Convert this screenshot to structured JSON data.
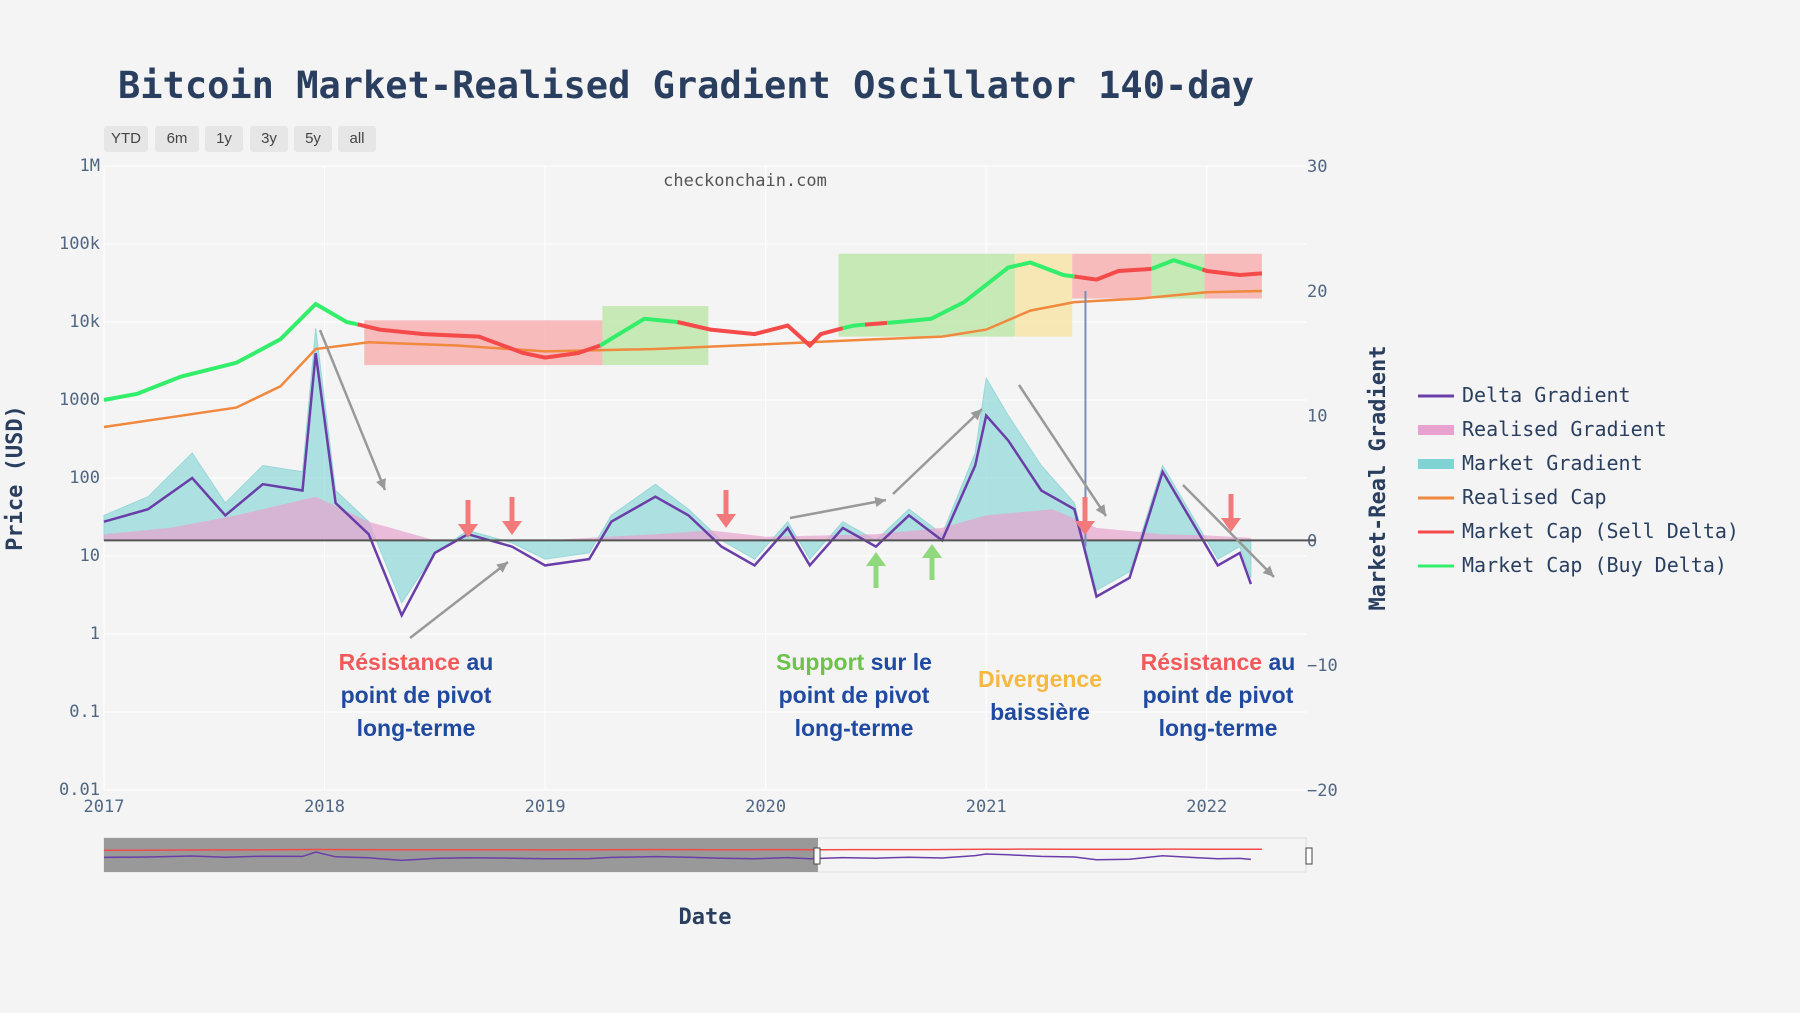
{
  "title": "Bitcoin Market-Realised Gradient Oscillator 140-day",
  "watermark": "checkonchain.com",
  "range_buttons": [
    "YTD",
    "6m",
    "1y",
    "3y",
    "5y",
    "all"
  ],
  "annotations": [
    {
      "part1": "Résistance",
      "part1_color": "red",
      "part2": " au",
      "line2": "point de pivot",
      "line3": "long-terme"
    },
    {
      "part1": "Support",
      "part1_color": "green",
      "part2": " sur le",
      "line2": "point de pivot",
      "line3": "long-terme"
    },
    {
      "part1": "Divergence",
      "part1_color": "yellow",
      "part2": "",
      "line2": "baissière",
      "line3": ""
    },
    {
      "part1": "Résistance",
      "part1_color": "red",
      "part2": " au",
      "line2": "point de pivot",
      "line3": "long-terme"
    }
  ],
  "colors": {
    "delta": "#6a3ea8",
    "realised_gradient": "#e7a2cf",
    "market_gradient": "#7fd3d3",
    "realised_cap": "#f0883e",
    "sell_delta": "#f44a4a",
    "buy_delta": "#33ee6a",
    "zone_red": "#f8a8a8",
    "zone_green": "#b8e6a0",
    "zone_yellow": "#f7e3a0",
    "arrow_red": "#f27a7a",
    "arrow_green": "#8fd87c",
    "arrow_gray": "#999999"
  },
  "chart_data": {
    "type": "line",
    "title": "Bitcoin Market-Realised Gradient Oscillator 140-day",
    "xlabel": "Date",
    "ylabel": "Price (USD)",
    "y2label": "Market-Real Gradient",
    "x_ticks": [
      "2017",
      "2018",
      "2019",
      "2020",
      "2021",
      "2022"
    ],
    "x_range": [
      2017.0,
      2022.45
    ],
    "y_left": {
      "scale": "log",
      "range": [
        0.01,
        1000000
      ],
      "ticks": [
        "1M",
        "100k",
        "10k",
        "1000",
        "100",
        "10",
        "1",
        "0.1",
        "0.01"
      ]
    },
    "y_right": {
      "range": [
        -20,
        30
      ],
      "ticks": [
        "30",
        "20",
        "10",
        "0",
        "−10",
        "−20"
      ]
    },
    "legend": [
      "Delta Gradient",
      "Realised Gradient",
      "Market Gradient",
      "Realised Cap",
      "Market Cap (Sell Delta)",
      "Market Cap (Buy Delta)"
    ],
    "market_cap": {
      "x": [
        2017.0,
        2017.15,
        2017.35,
        2017.6,
        2017.8,
        2017.96,
        2018.1,
        2018.25,
        2018.45,
        2018.7,
        2018.9,
        2019.0,
        2019.15,
        2019.25,
        2019.45,
        2019.6,
        2019.75,
        2019.95,
        2020.1,
        2020.2,
        2020.25,
        2020.4,
        2020.6,
        2020.75,
        2020.9,
        2021.0,
        2021.1,
        2021.2,
        2021.35,
        2021.5,
        2021.6,
        2021.75,
        2021.85,
        2022.0,
        2022.15,
        2022.25
      ],
      "y": [
        1000,
        1200,
        2000,
        3000,
        6000,
        17000,
        10000,
        8000,
        7000,
        6500,
        4000,
        3500,
        4000,
        5000,
        11000,
        10000,
        8000,
        7000,
        9000,
        5000,
        7000,
        9000,
        10000,
        11000,
        18000,
        30000,
        50000,
        58000,
        40000,
        35000,
        45000,
        48000,
        62000,
        45000,
        40000,
        42000
      ],
      "segments": [
        {
          "from": 2017.0,
          "to": 2018.15,
          "mode": "buy"
        },
        {
          "from": 2018.15,
          "to": 2019.25,
          "mode": "sell"
        },
        {
          "from": 2019.25,
          "to": 2019.6,
          "mode": "buy"
        },
        {
          "from": 2019.6,
          "to": 2020.35,
          "mode": "sell"
        },
        {
          "from": 2020.35,
          "to": 2020.45,
          "mode": "buy"
        },
        {
          "from": 2020.45,
          "to": 2020.55,
          "mode": "sell"
        },
        {
          "from": 2020.55,
          "to": 2021.4,
          "mode": "buy"
        },
        {
          "from": 2021.4,
          "to": 2021.75,
          "mode": "sell"
        },
        {
          "from": 2021.75,
          "to": 2021.98,
          "mode": "buy"
        },
        {
          "from": 2021.98,
          "to": 2022.25,
          "mode": "sell"
        }
      ]
    },
    "realised_cap": {
      "x": [
        2017.0,
        2017.3,
        2017.6,
        2017.8,
        2017.96,
        2018.2,
        2018.6,
        2019.0,
        2019.5,
        2020.0,
        2020.5,
        2020.8,
        2021.0,
        2021.2,
        2021.4,
        2021.7,
        2022.0,
        2022.25
      ],
      "y": [
        450,
        600,
        800,
        1500,
        4500,
        5500,
        5000,
        4200,
        4500,
        5200,
        6000,
        6500,
        8000,
        14000,
        18000,
        20000,
        24000,
        25000
      ]
    },
    "delta_gradient": {
      "x": [
        2017.0,
        2017.2,
        2017.4,
        2017.55,
        2017.72,
        2017.9,
        2017.96,
        2018.05,
        2018.2,
        2018.35,
        2018.5,
        2018.65,
        2018.85,
        2019.0,
        2019.2,
        2019.3,
        2019.5,
        2019.65,
        2019.8,
        2019.95,
        2020.1,
        2020.2,
        2020.35,
        2020.5,
        2020.65,
        2020.8,
        2020.95,
        2021.0,
        2021.1,
        2021.25,
        2021.4,
        2021.5,
        2021.65,
        2021.8,
        2021.95,
        2022.05,
        2022.15,
        2022.2
      ],
      "y": [
        1.5,
        2.5,
        5.0,
        2.0,
        4.5,
        4.0,
        15.0,
        3.0,
        0.5,
        -6.0,
        -1.0,
        0.5,
        -0.5,
        -2.0,
        -1.5,
        1.5,
        3.5,
        2.0,
        -0.5,
        -2.0,
        1.0,
        -2.0,
        1.0,
        -0.5,
        2.0,
        0.0,
        6.0,
        10.0,
        8.0,
        4.0,
        2.5,
        -4.5,
        -3.0,
        5.5,
        1.0,
        -2.0,
        -1.0,
        -3.5
      ]
    },
    "market_gradient": {
      "x": [
        2017.0,
        2017.2,
        2017.4,
        2017.55,
        2017.72,
        2017.9,
        2017.96,
        2018.05,
        2018.2,
        2018.35,
        2018.5,
        2018.65,
        2018.85,
        2019.0,
        2019.2,
        2019.3,
        2019.5,
        2019.65,
        2019.8,
        2019.95,
        2020.1,
        2020.2,
        2020.35,
        2020.5,
        2020.65,
        2020.8,
        2020.95,
        2021.0,
        2021.1,
        2021.25,
        2021.4,
        2021.5,
        2021.65,
        2021.8,
        2021.95,
        2022.05,
        2022.15,
        2022.2
      ],
      "y": [
        2.0,
        3.5,
        7.0,
        3.0,
        6.0,
        5.5,
        17.0,
        4.0,
        1.5,
        -5.0,
        -1.0,
        0.8,
        -0.2,
        -1.5,
        -1.0,
        2.0,
        4.5,
        2.5,
        0.0,
        -1.5,
        1.5,
        -1.5,
        1.5,
        0.0,
        2.5,
        0.5,
        7.0,
        13.0,
        10.0,
        6.0,
        3.0,
        -4.0,
        -2.5,
        6.0,
        1.5,
        -1.5,
        -0.5,
        -3.0
      ]
    },
    "realised_gradient": {
      "x": [
        2017.0,
        2017.3,
        2017.6,
        2017.96,
        2018.2,
        2018.5,
        2019.0,
        2019.5,
        2019.75,
        2020.0,
        2020.5,
        2020.8,
        2021.0,
        2021.3,
        2021.5,
        2021.8,
        2022.0,
        2022.2
      ],
      "y": [
        0.5,
        1.0,
        2.0,
        3.5,
        1.5,
        0.0,
        0.0,
        0.5,
        0.8,
        0.3,
        0.5,
        1.0,
        2.0,
        2.5,
        1.0,
        0.5,
        0.4,
        0.2
      ]
    },
    "zones": [
      {
        "from": 2018.18,
        "to": 2019.26,
        "y_low": 2800,
        "y_high": 10500,
        "color": "red"
      },
      {
        "from": 2019.26,
        "to": 2019.74,
        "y_low": 2800,
        "y_high": 16000,
        "color": "green"
      },
      {
        "from": 2020.33,
        "to": 2021.13,
        "y_low": 6500,
        "y_high": 75000,
        "color": "green"
      },
      {
        "from": 2021.13,
        "to": 2021.39,
        "y_low": 6500,
        "y_high": 75000,
        "color": "yellow"
      },
      {
        "from": 2021.39,
        "to": 2021.75,
        "y_low": 20000,
        "y_high": 75000,
        "color": "red"
      },
      {
        "from": 2021.75,
        "to": 2021.99,
        "y_low": 20000,
        "y_high": 75000,
        "color": "green"
      },
      {
        "from": 2021.99,
        "to": 2022.25,
        "y_low": 20000,
        "y_high": 75000,
        "color": "red"
      }
    ]
  }
}
